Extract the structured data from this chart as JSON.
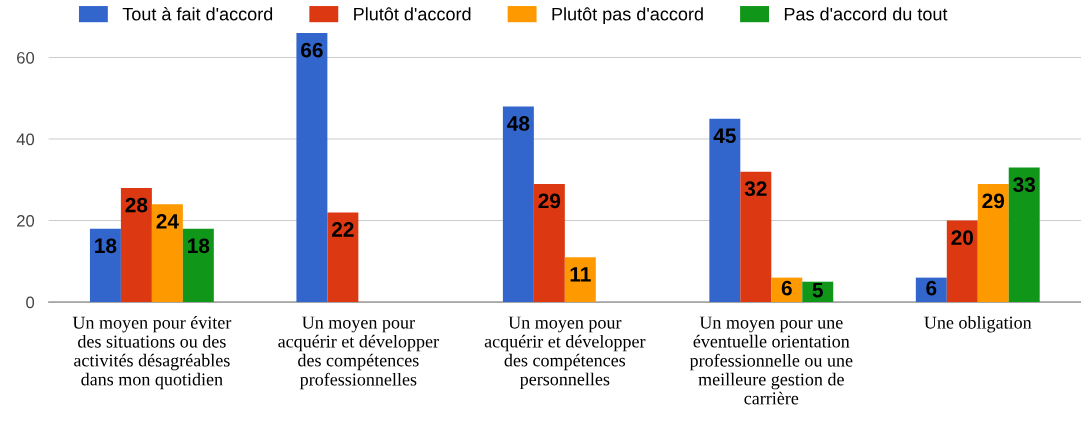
{
  "chart_data": {
    "type": "bar",
    "categories": [
      "Un moyen pour éviter\ndes situations ou des\nactivités désagréables\ndans mon quotidien",
      "Un moyen pour\nacquérir et développer\ndes compétences\nprofessionnelles",
      "Un moyen pour\nacquérir et développer\ndes compétences\npersonnelles",
      "Un moyen pour une\néventuelle orientation\nprofessionnelle ou une\nmeilleure gestion de\ncarrière",
      "Une obligation"
    ],
    "series": [
      {
        "name": "Tout à fait d'accord",
        "color": "#3366cc",
        "values": [
          18,
          66,
          48,
          45,
          6
        ]
      },
      {
        "name": "Plutôt d'accord",
        "color": "#dc3912",
        "values": [
          28,
          22,
          29,
          32,
          20
        ]
      },
      {
        "name": "Plutôt pas d'accord",
        "color": "#ff9900",
        "values": [
          24,
          null,
          11,
          6,
          29
        ]
      },
      {
        "name": "Pas d'accord du tout",
        "color": "#109618",
        "values": [
          18,
          null,
          null,
          5,
          33
        ]
      }
    ],
    "ylim": [
      0,
      66
    ],
    "yticks": [
      0,
      20,
      40,
      60
    ],
    "grid": "y",
    "legend": "top",
    "data_labels": true
  }
}
